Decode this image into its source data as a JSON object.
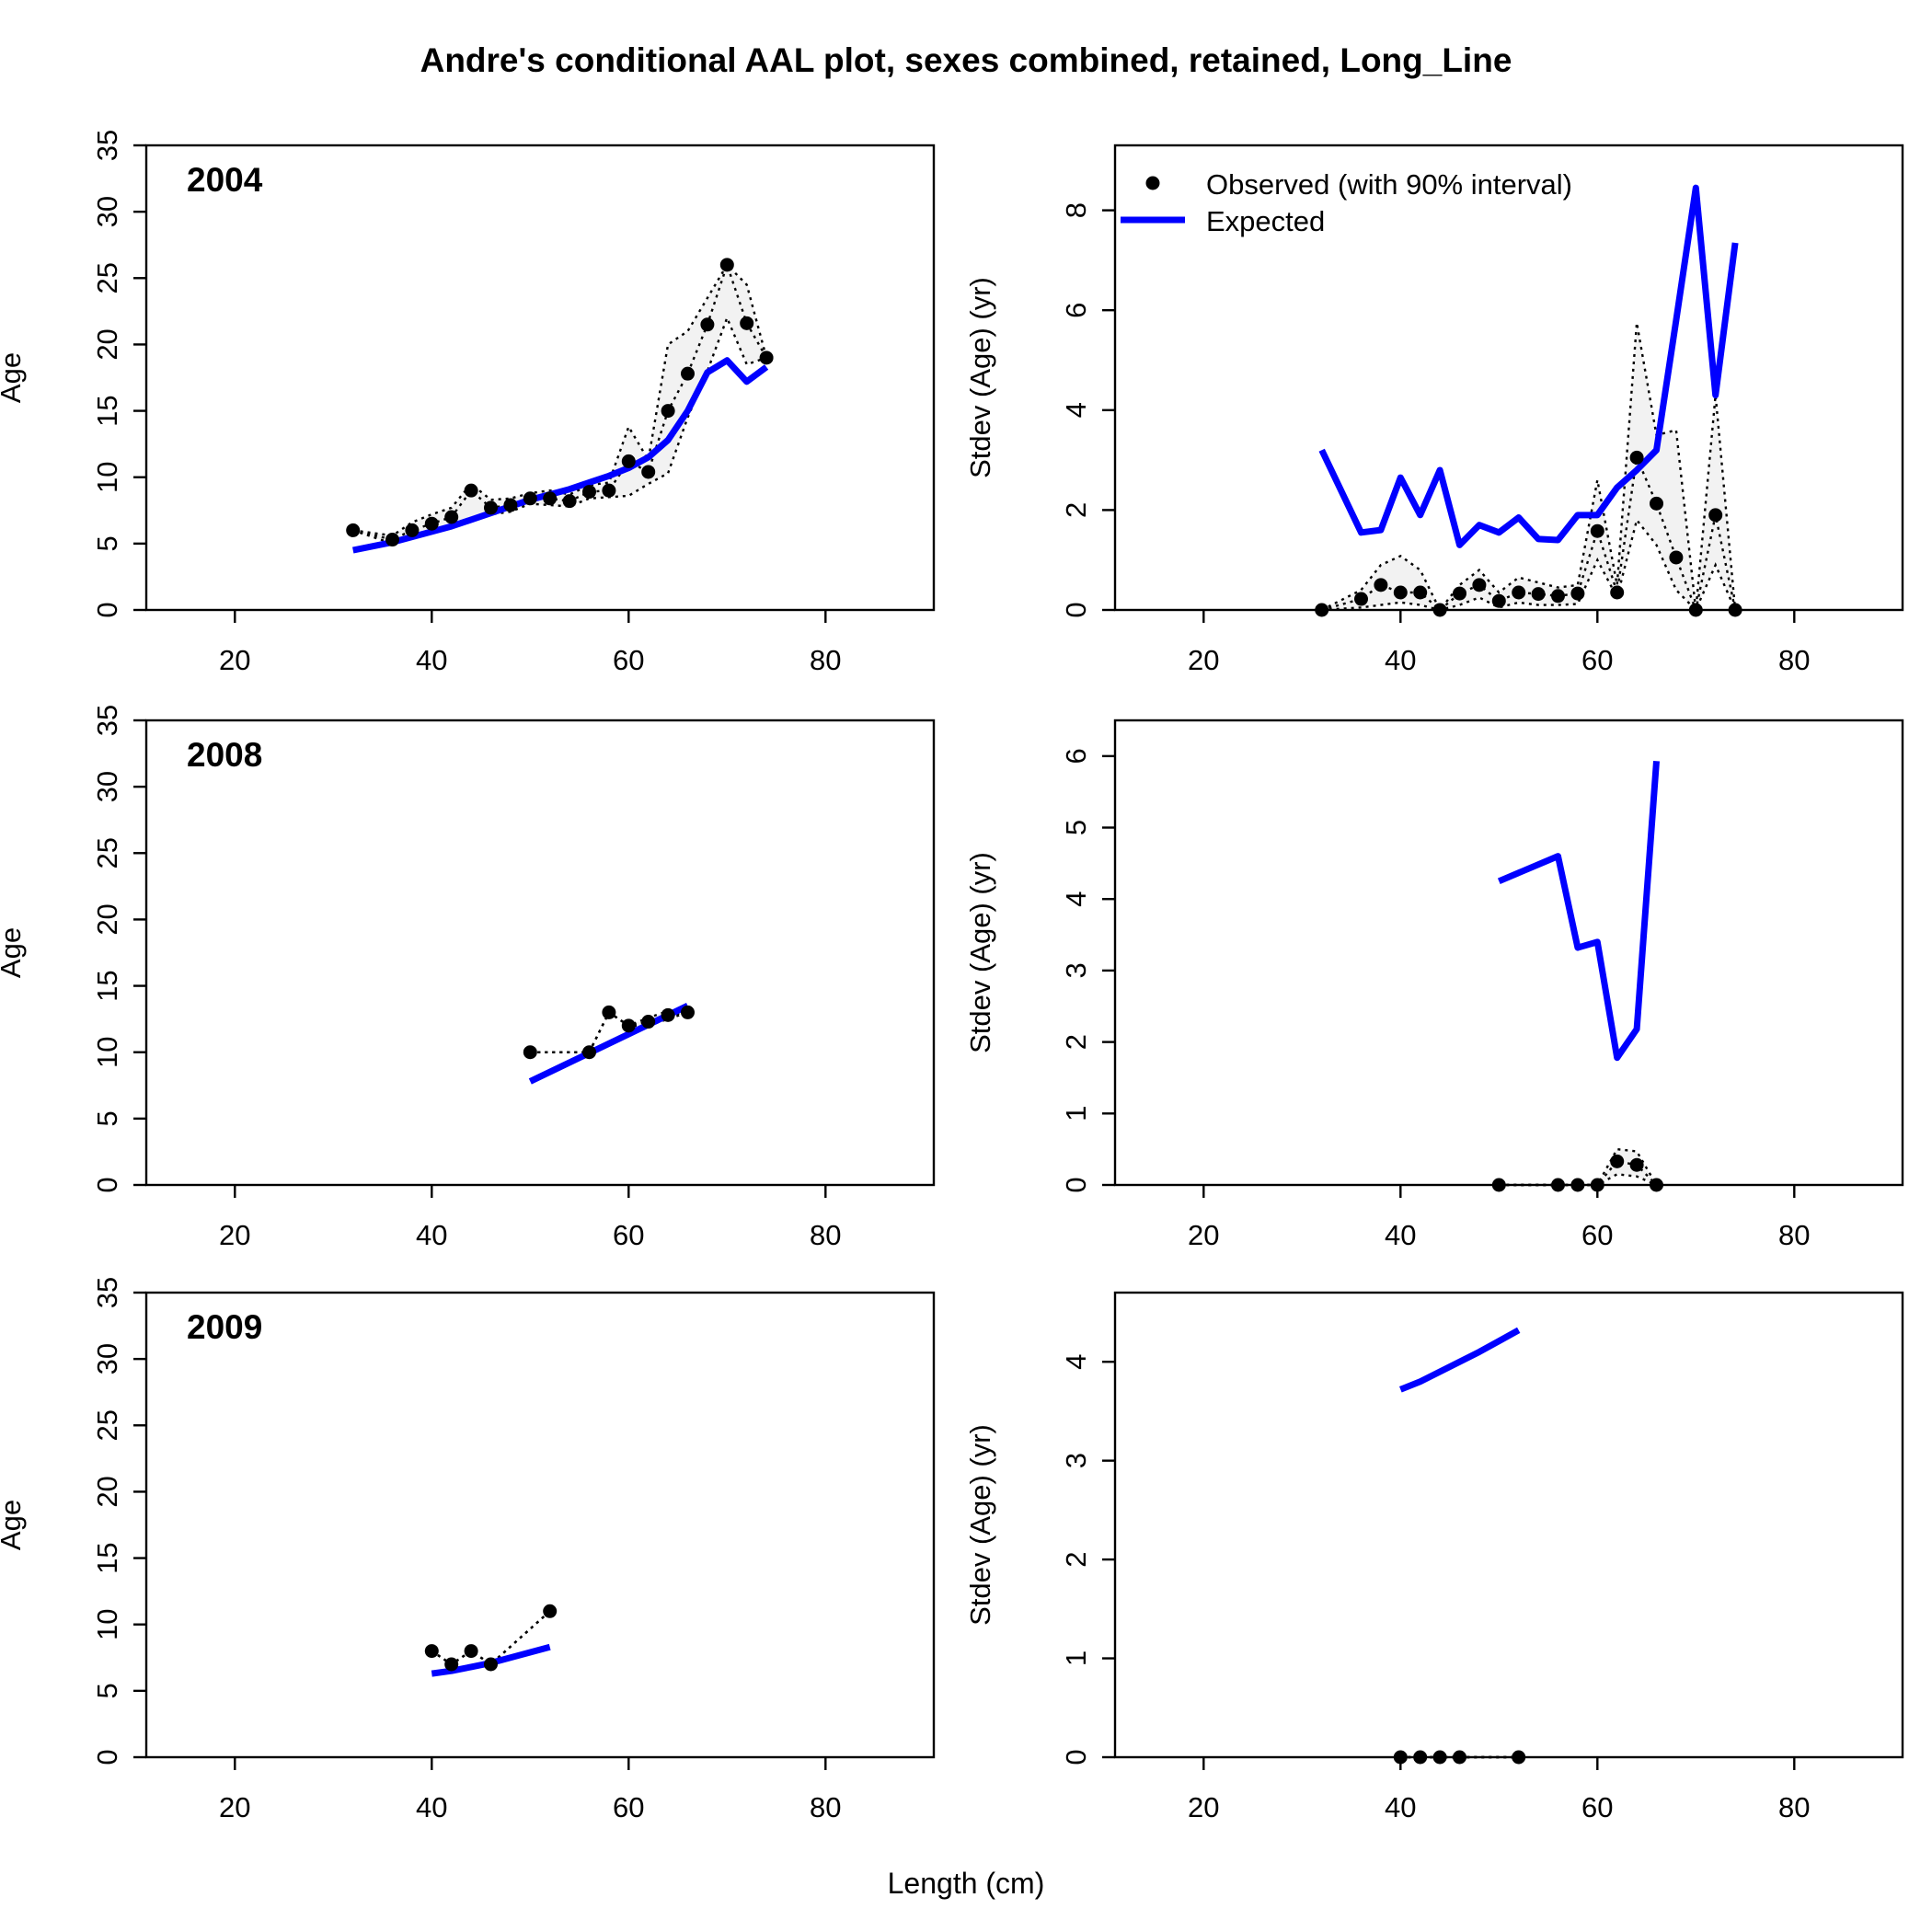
{
  "title": "Andre's conditional AAL plot, sexes combined, retained, Long_Line",
  "xlabel": "Length (cm)",
  "ylabel_left": "Age",
  "ylabel_right": "Stdev (Age) (yr)",
  "legend": {
    "observed_label": "Observed (with 90% interval)",
    "expected_label": "Expected",
    "placement": "top-left"
  },
  "colors": {
    "expected": "#0000FF",
    "observed": "#000000",
    "interval_fill": "#F2F2F2"
  },
  "chart_data": [
    {
      "type": "line",
      "panel": "age-2004",
      "year_label": "2004",
      "xlim": [
        11,
        91
      ],
      "ylim": [
        0,
        35
      ],
      "xticks": [
        20,
        40,
        60,
        80
      ],
      "yticks": [
        0,
        5,
        10,
        15,
        20,
        25,
        30,
        35
      ],
      "observed": {
        "x": [
          32,
          36,
          38,
          40,
          42,
          44,
          46,
          48,
          50,
          52,
          54,
          56,
          58,
          60,
          62,
          64,
          66,
          68,
          70,
          72,
          74
        ],
        "y": [
          6.0,
          5.3,
          6.0,
          6.5,
          7.0,
          9.0,
          7.7,
          7.9,
          8.4,
          8.4,
          8.2,
          8.9,
          9.0,
          11.2,
          10.4,
          15.0,
          17.8,
          21.5,
          26.0,
          21.6,
          19.0
        ]
      },
      "interval": {
        "x": [
          32,
          36,
          38,
          40,
          42,
          44,
          46,
          48,
          50,
          52,
          54,
          56,
          58,
          60,
          62,
          64,
          66,
          68,
          70,
          72,
          74
        ],
        "lower": [
          6.0,
          5.0,
          5.5,
          5.8,
          6.3,
          6.8,
          7.2,
          7.4,
          8.0,
          7.9,
          7.8,
          8.4,
          8.5,
          8.6,
          9.5,
          10.3,
          14.5,
          18.0,
          22.0,
          18.5,
          19.0
        ],
        "upper": [
          6.0,
          5.6,
          6.6,
          7.2,
          7.7,
          9.5,
          8.3,
          8.4,
          8.8,
          9.0,
          8.7,
          9.4,
          9.6,
          13.8,
          11.3,
          20.0,
          21.0,
          23.5,
          26.0,
          24.5,
          19.0
        ]
      },
      "expected": {
        "x": [
          32,
          36,
          38,
          40,
          42,
          44,
          46,
          48,
          50,
          52,
          54,
          56,
          58,
          60,
          62,
          64,
          66,
          68,
          70,
          72,
          74
        ],
        "y": [
          4.5,
          5.1,
          5.5,
          5.9,
          6.3,
          6.8,
          7.3,
          7.8,
          8.3,
          8.7,
          9.1,
          9.6,
          10.1,
          10.7,
          11.5,
          12.8,
          15.0,
          17.9,
          18.8,
          17.2,
          18.3
        ]
      }
    },
    {
      "type": "line",
      "panel": "sd-2004",
      "xlim": [
        11,
        91
      ],
      "ylim": [
        0,
        9.3
      ],
      "xticks": [
        20,
        40,
        60,
        80
      ],
      "yticks": [
        0,
        2,
        4,
        6,
        8
      ],
      "observed": {
        "x": [
          32,
          36,
          38,
          40,
          42,
          44,
          46,
          48,
          50,
          52,
          54,
          56,
          58,
          60,
          62,
          64,
          66,
          68,
          70,
          72,
          74
        ],
        "y": [
          0.0,
          0.22,
          0.5,
          0.35,
          0.35,
          0.0,
          0.33,
          0.5,
          0.18,
          0.35,
          0.32,
          0.28,
          0.33,
          1.58,
          0.35,
          3.05,
          2.13,
          1.05,
          0.0,
          1.9,
          0.0
        ]
      },
      "interval": {
        "x": [
          32,
          36,
          38,
          40,
          42,
          44,
          46,
          48,
          50,
          52,
          54,
          56,
          58,
          60,
          62,
          64,
          66,
          68,
          70,
          72,
          74
        ],
        "lower": [
          0.0,
          0.05,
          0.1,
          0.15,
          0.1,
          0.0,
          0.1,
          0.25,
          0.05,
          0.15,
          0.1,
          0.1,
          0.12,
          1.0,
          0.25,
          1.8,
          1.3,
          0.4,
          0.0,
          0.9,
          0.0
        ],
        "upper": [
          0.0,
          0.4,
          0.9,
          1.08,
          0.8,
          0.0,
          0.5,
          0.8,
          0.35,
          0.65,
          0.55,
          0.45,
          0.5,
          2.6,
          0.5,
          5.75,
          3.5,
          3.6,
          0.0,
          4.3,
          0.0
        ]
      },
      "expected": {
        "x": [
          32,
          36,
          38,
          40,
          42,
          44,
          46,
          48,
          50,
          52,
          54,
          56,
          58,
          60,
          62,
          64,
          66,
          68,
          70,
          72,
          74
        ],
        "y": [
          3.2,
          1.55,
          1.6,
          2.65,
          1.9,
          2.8,
          1.3,
          1.7,
          1.55,
          1.85,
          1.42,
          1.4,
          1.9,
          1.9,
          2.45,
          2.8,
          3.2,
          5.8,
          8.45,
          4.3,
          7.35
        ]
      }
    },
    {
      "type": "line",
      "panel": "age-2008",
      "year_label": "2008",
      "xlim": [
        11,
        91
      ],
      "ylim": [
        0,
        35
      ],
      "xticks": [
        20,
        40,
        60,
        80
      ],
      "yticks": [
        0,
        5,
        10,
        15,
        20,
        25,
        30,
        35
      ],
      "observed": {
        "x": [
          50,
          56,
          58,
          60,
          62,
          64,
          66
        ],
        "y": [
          10.0,
          10.0,
          13.0,
          12.0,
          12.3,
          12.8,
          13.0
        ]
      },
      "interval": {
        "x": [
          50,
          56,
          58,
          60,
          62,
          64,
          66
        ],
        "lower": [
          10.0,
          10.0,
          13.0,
          12.0,
          12.0,
          12.5,
          13.0
        ],
        "upper": [
          10.0,
          10.0,
          13.0,
          12.0,
          12.6,
          13.1,
          13.0
        ]
      },
      "expected": {
        "x": [
          50,
          66
        ],
        "y": [
          7.8,
          13.5
        ]
      }
    },
    {
      "type": "line",
      "panel": "sd-2008",
      "xlim": [
        11,
        91
      ],
      "ylim": [
        0,
        6.5
      ],
      "xticks": [
        20,
        40,
        60,
        80
      ],
      "yticks": [
        0,
        1,
        2,
        3,
        4,
        5,
        6
      ],
      "observed": {
        "x": [
          50,
          56,
          58,
          60,
          62,
          64,
          66
        ],
        "y": [
          0.0,
          0.0,
          0.0,
          0.0,
          0.33,
          0.28,
          0.0
        ]
      },
      "interval": {
        "x": [
          50,
          56,
          58,
          60,
          62,
          64,
          66
        ],
        "lower": [
          0.0,
          0.0,
          0.0,
          0.0,
          0.15,
          0.12,
          0.0
        ],
        "upper": [
          0.0,
          0.0,
          0.0,
          0.0,
          0.5,
          0.47,
          0.0
        ]
      },
      "expected": {
        "x": [
          50,
          56,
          58,
          60,
          62,
          64,
          66
        ],
        "y": [
          4.25,
          4.6,
          3.32,
          3.4,
          1.78,
          2.18,
          5.93
        ]
      }
    },
    {
      "type": "line",
      "panel": "age-2009",
      "year_label": "2009",
      "xlim": [
        11,
        91
      ],
      "ylim": [
        0,
        35
      ],
      "xticks": [
        20,
        40,
        60,
        80
      ],
      "yticks": [
        0,
        5,
        10,
        15,
        20,
        25,
        30,
        35
      ],
      "observed": {
        "x": [
          40,
          42,
          44,
          46,
          52
        ],
        "y": [
          8.0,
          7.0,
          8.0,
          7.0,
          11.0
        ]
      },
      "interval": {
        "x": [
          40,
          42,
          44,
          46,
          52
        ],
        "lower": [
          8.0,
          7.0,
          8.0,
          7.0,
          11.0
        ],
        "upper": [
          8.0,
          7.0,
          8.0,
          7.0,
          11.0
        ]
      },
      "expected": {
        "x": [
          40,
          42,
          44,
          46,
          48,
          50,
          52
        ],
        "y": [
          6.3,
          6.5,
          6.8,
          7.1,
          7.5,
          7.9,
          8.3
        ]
      }
    },
    {
      "type": "line",
      "panel": "sd-2009",
      "xlim": [
        11,
        91
      ],
      "ylim": [
        0,
        4.7
      ],
      "xticks": [
        20,
        40,
        60,
        80
      ],
      "yticks": [
        0,
        1,
        2,
        3,
        4
      ],
      "observed": {
        "x": [
          40,
          42,
          44,
          46,
          52
        ],
        "y": [
          0.0,
          0.0,
          0.0,
          0.0,
          0.0
        ]
      },
      "interval": {
        "x": [
          40,
          42,
          44,
          46,
          52
        ],
        "lower": [
          0.0,
          0.0,
          0.0,
          0.0,
          0.0
        ],
        "upper": [
          0.0,
          0.0,
          0.0,
          0.0,
          0.0
        ]
      },
      "expected": {
        "x": [
          40,
          42,
          44,
          46,
          48,
          50,
          52
        ],
        "y": [
          3.72,
          3.8,
          3.9,
          4.0,
          4.1,
          4.21,
          4.32
        ]
      }
    }
  ]
}
